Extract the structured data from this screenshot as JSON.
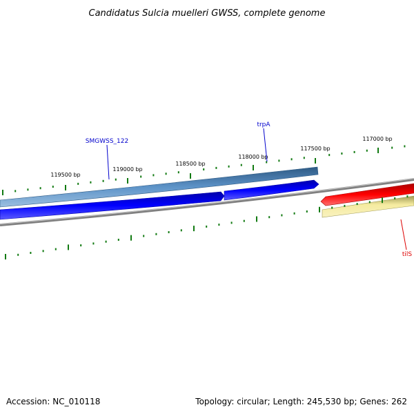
{
  "title": "Candidatus Sulcia muelleri GWSS, complete genome",
  "footer": {
    "accession": "Accession: NC_010118",
    "summary": "Topology: circular; Length: 245,530 bp; Genes: 262"
  },
  "ticks": [
    {
      "label": "119500 bp"
    },
    {
      "label": "119000 bp"
    },
    {
      "label": "118500 bp"
    },
    {
      "label": "118000 bp"
    },
    {
      "label": "117500 bp"
    },
    {
      "label": "117000 bp"
    }
  ],
  "genes": [
    {
      "name": "SMGWSS_122",
      "color": "#0000cc"
    },
    {
      "name": "trpA",
      "color": "#0000cc"
    },
    {
      "name": "tilS",
      "color": "#dd0000"
    }
  ],
  "colors": {
    "cds_lane": "#4a7fb5",
    "forward_gene": "#0000ee",
    "reverse_gene": "#ee0000",
    "reverse_cds": "#f2e69a",
    "backbone": "#808080",
    "tick_mark": "#117a11"
  }
}
